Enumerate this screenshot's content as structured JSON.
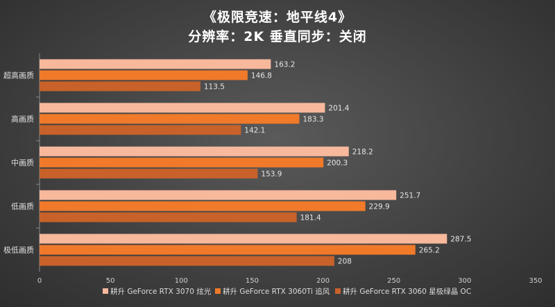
{
  "chart_data": {
    "type": "bar",
    "orientation": "horizontal",
    "title": "《极限竞速：地平线4》",
    "subtitle": "分辨率：2K    垂直同步：关闭",
    "categories": [
      "超高画质",
      "高画质",
      "中画质",
      "低画质",
      "极低画质"
    ],
    "series": [
      {
        "name": "耕升 GeForce RTX 3070 炫光",
        "color": "#f7b89c",
        "values": [
          163.2,
          201.4,
          218.2,
          251.7,
          287.5
        ]
      },
      {
        "name": "耕升 GeForce RTX 3060Ti 追风",
        "color": "#f07a2a",
        "values": [
          146.8,
          183.3,
          200.3,
          229.9,
          265.2
        ]
      },
      {
        "name": "耕升 GeForce RTX 3060 星极绿晶 OC",
        "color": "#c8622a",
        "values": [
          113.5,
          142.1,
          153.9,
          181.4,
          208
        ]
      }
    ],
    "xlim": [
      0,
      350
    ],
    "xticks": [
      0,
      50,
      100,
      150,
      200,
      250,
      300,
      350
    ],
    "legend": "bottom"
  }
}
